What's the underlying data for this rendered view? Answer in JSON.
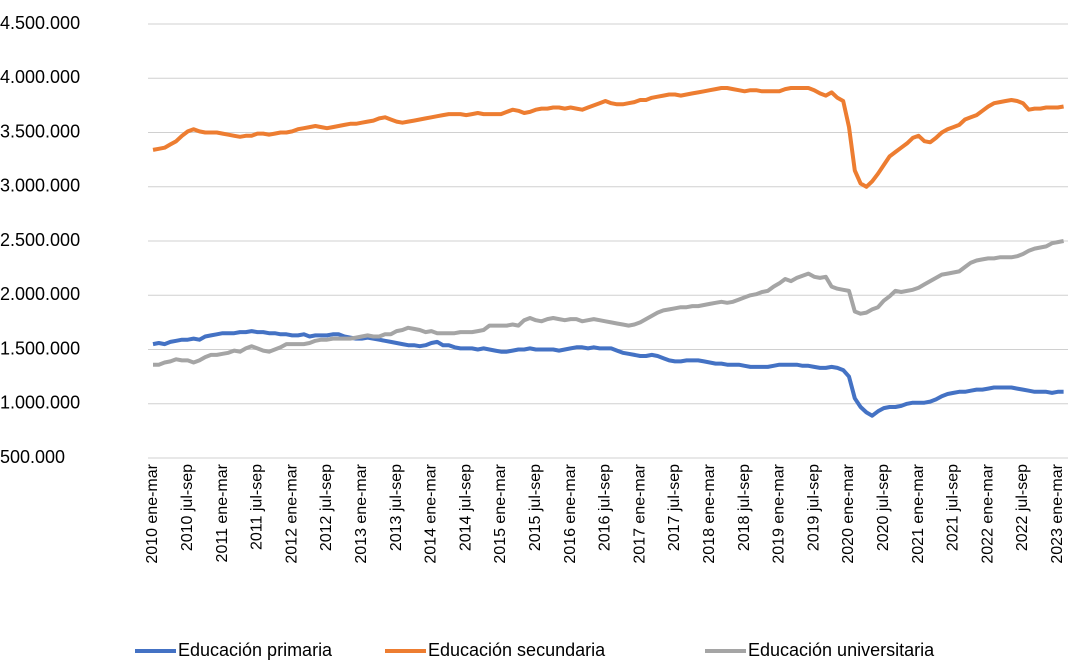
{
  "chart_data": {
    "type": "line",
    "categories": [
      "2010 ene-mar",
      null,
      null,
      null,
      null,
      null,
      "2010 jul-sep",
      null,
      null,
      null,
      null,
      null,
      "2011 ene-mar",
      null,
      null,
      null,
      null,
      null,
      "2011 jul-sep",
      null,
      null,
      null,
      null,
      null,
      "2012 ene-mar",
      null,
      null,
      null,
      null,
      null,
      "2012 jul-sep",
      null,
      null,
      null,
      null,
      null,
      "2013 ene-mar",
      null,
      null,
      null,
      null,
      null,
      "2013 jul-sep",
      null,
      null,
      null,
      null,
      null,
      "2014 ene-mar",
      null,
      null,
      null,
      null,
      null,
      "2014 jul-sep",
      null,
      null,
      null,
      null,
      null,
      "2015 ene-mar",
      null,
      null,
      null,
      null,
      null,
      "2015 jul-sep",
      null,
      null,
      null,
      null,
      null,
      "2016 ene-mar",
      null,
      null,
      null,
      null,
      null,
      "2016 jul-sep",
      null,
      null,
      null,
      null,
      null,
      "2017 ene-mar",
      null,
      null,
      null,
      null,
      null,
      "2017 jul-sep",
      null,
      null,
      null,
      null,
      null,
      "2018 ene-mar",
      null,
      null,
      null,
      null,
      null,
      "2018 jul-sep",
      null,
      null,
      null,
      null,
      null,
      "2019 ene-mar",
      null,
      null,
      null,
      null,
      null,
      "2019 jul-sep",
      null,
      null,
      null,
      null,
      null,
      "2020 ene-mar",
      null,
      null,
      null,
      null,
      null,
      "2020 jul-sep",
      null,
      null,
      null,
      null,
      null,
      "2021 ene-mar",
      null,
      null,
      null,
      null,
      null,
      "2021 jul-sep",
      null,
      null,
      null,
      null,
      null,
      "2022 ene-mar",
      null,
      null,
      null,
      null,
      null,
      "2022 jul-sep",
      null,
      null,
      null,
      null,
      null,
      "2023 ene-mar",
      null
    ],
    "series": [
      {
        "name": "Educación primaria",
        "color": "#4472c4",
        "values": [
          1550000,
          1560000,
          1550000,
          1570000,
          1580000,
          1590000,
          1590000,
          1600000,
          1590000,
          1620000,
          1630000,
          1640000,
          1650000,
          1650000,
          1650000,
          1660000,
          1660000,
          1670000,
          1660000,
          1660000,
          1650000,
          1650000,
          1640000,
          1640000,
          1630000,
          1630000,
          1640000,
          1620000,
          1630000,
          1630000,
          1630000,
          1640000,
          1640000,
          1620000,
          1610000,
          1600000,
          1600000,
          1610000,
          1600000,
          1590000,
          1580000,
          1570000,
          1560000,
          1550000,
          1540000,
          1540000,
          1530000,
          1540000,
          1560000,
          1570000,
          1540000,
          1540000,
          1520000,
          1510000,
          1510000,
          1510000,
          1500000,
          1510000,
          1500000,
          1490000,
          1480000,
          1480000,
          1490000,
          1500000,
          1500000,
          1510000,
          1500000,
          1500000,
          1500000,
          1500000,
          1490000,
          1500000,
          1510000,
          1520000,
          1520000,
          1510000,
          1520000,
          1510000,
          1510000,
          1510000,
          1490000,
          1470000,
          1460000,
          1450000,
          1440000,
          1440000,
          1450000,
          1440000,
          1420000,
          1400000,
          1390000,
          1390000,
          1400000,
          1400000,
          1400000,
          1390000,
          1380000,
          1370000,
          1370000,
          1360000,
          1360000,
          1360000,
          1350000,
          1340000,
          1340000,
          1340000,
          1340000,
          1350000,
          1360000,
          1360000,
          1360000,
          1360000,
          1350000,
          1350000,
          1340000,
          1330000,
          1330000,
          1340000,
          1330000,
          1310000,
          1250000,
          1050000,
          970000,
          920000,
          890000,
          930000,
          960000,
          970000,
          970000,
          980000,
          1000000,
          1010000,
          1010000,
          1010000,
          1020000,
          1040000,
          1070000,
          1090000,
          1100000,
          1110000,
          1110000,
          1120000,
          1130000,
          1130000,
          1140000,
          1150000,
          1150000,
          1150000,
          1150000,
          1140000,
          1130000,
          1120000,
          1110000,
          1110000,
          1110000,
          1100000,
          1110000,
          1110000
        ]
      },
      {
        "name": "Educación secundaria",
        "color": "#ed7d31",
        "values": [
          3340000,
          3350000,
          3360000,
          3390000,
          3420000,
          3470000,
          3510000,
          3530000,
          3510000,
          3500000,
          3500000,
          3500000,
          3490000,
          3480000,
          3470000,
          3460000,
          3470000,
          3470000,
          3490000,
          3490000,
          3480000,
          3490000,
          3500000,
          3500000,
          3510000,
          3530000,
          3540000,
          3550000,
          3560000,
          3550000,
          3540000,
          3550000,
          3560000,
          3570000,
          3580000,
          3580000,
          3590000,
          3600000,
          3610000,
          3630000,
          3640000,
          3620000,
          3600000,
          3590000,
          3600000,
          3610000,
          3620000,
          3630000,
          3640000,
          3650000,
          3660000,
          3670000,
          3670000,
          3670000,
          3660000,
          3670000,
          3680000,
          3670000,
          3670000,
          3670000,
          3670000,
          3690000,
          3710000,
          3700000,
          3680000,
          3690000,
          3710000,
          3720000,
          3720000,
          3730000,
          3730000,
          3720000,
          3730000,
          3720000,
          3710000,
          3730000,
          3750000,
          3770000,
          3790000,
          3770000,
          3760000,
          3760000,
          3770000,
          3780000,
          3800000,
          3800000,
          3820000,
          3830000,
          3840000,
          3850000,
          3850000,
          3840000,
          3850000,
          3860000,
          3870000,
          3880000,
          3890000,
          3900000,
          3910000,
          3910000,
          3900000,
          3890000,
          3880000,
          3890000,
          3890000,
          3880000,
          3880000,
          3880000,
          3880000,
          3900000,
          3910000,
          3910000,
          3910000,
          3910000,
          3890000,
          3860000,
          3840000,
          3870000,
          3820000,
          3790000,
          3550000,
          3150000,
          3030000,
          3000000,
          3050000,
          3120000,
          3200000,
          3280000,
          3320000,
          3360000,
          3400000,
          3450000,
          3470000,
          3420000,
          3410000,
          3450000,
          3500000,
          3530000,
          3550000,
          3570000,
          3620000,
          3640000,
          3660000,
          3700000,
          3740000,
          3770000,
          3780000,
          3790000,
          3800000,
          3790000,
          3770000,
          3710000,
          3720000,
          3720000,
          3730000,
          3730000,
          3730000,
          3740000
        ]
      },
      {
        "name": "Educación universitaria",
        "color": "#a5a5a5",
        "values": [
          1360000,
          1360000,
          1380000,
          1390000,
          1410000,
          1400000,
          1400000,
          1380000,
          1400000,
          1430000,
          1450000,
          1450000,
          1460000,
          1470000,
          1490000,
          1480000,
          1510000,
          1530000,
          1510000,
          1490000,
          1480000,
          1500000,
          1520000,
          1550000,
          1550000,
          1550000,
          1550000,
          1560000,
          1580000,
          1590000,
          1590000,
          1600000,
          1600000,
          1600000,
          1600000,
          1610000,
          1620000,
          1630000,
          1620000,
          1620000,
          1640000,
          1640000,
          1670000,
          1680000,
          1700000,
          1690000,
          1680000,
          1660000,
          1670000,
          1650000,
          1650000,
          1650000,
          1650000,
          1660000,
          1660000,
          1660000,
          1670000,
          1680000,
          1720000,
          1720000,
          1720000,
          1720000,
          1730000,
          1720000,
          1770000,
          1790000,
          1770000,
          1760000,
          1780000,
          1790000,
          1780000,
          1770000,
          1780000,
          1780000,
          1760000,
          1770000,
          1780000,
          1770000,
          1760000,
          1750000,
          1740000,
          1730000,
          1720000,
          1730000,
          1750000,
          1780000,
          1810000,
          1840000,
          1860000,
          1870000,
          1880000,
          1890000,
          1890000,
          1900000,
          1900000,
          1910000,
          1920000,
          1930000,
          1940000,
          1930000,
          1940000,
          1960000,
          1980000,
          2000000,
          2010000,
          2030000,
          2040000,
          2080000,
          2110000,
          2150000,
          2130000,
          2160000,
          2180000,
          2200000,
          2170000,
          2160000,
          2170000,
          2080000,
          2060000,
          2050000,
          2040000,
          1850000,
          1830000,
          1840000,
          1870000,
          1890000,
          1950000,
          1990000,
          2040000,
          2030000,
          2040000,
          2050000,
          2070000,
          2100000,
          2130000,
          2160000,
          2190000,
          2200000,
          2210000,
          2220000,
          2260000,
          2300000,
          2320000,
          2330000,
          2340000,
          2340000,
          2350000,
          2350000,
          2350000,
          2360000,
          2380000,
          2410000,
          2430000,
          2440000,
          2450000,
          2480000,
          2490000,
          2500000
        ]
      }
    ],
    "ylim": [
      500000,
      4500000
    ],
    "yticks": [
      {
        "value": 500000,
        "label": "500.000"
      },
      {
        "value": 1000000,
        "label": "1.000.000"
      },
      {
        "value": 1500000,
        "label": "1.500.000"
      },
      {
        "value": 2000000,
        "label": "2.000.000"
      },
      {
        "value": 2500000,
        "label": "2.500.000"
      },
      {
        "value": 3000000,
        "label": "3.000.000"
      },
      {
        "value": 3500000,
        "label": "3.500.000"
      },
      {
        "value": 4000000,
        "label": "4.000.000"
      },
      {
        "value": 4500000,
        "label": "4.500.000"
      }
    ],
    "grid": true,
    "legend": "bottom"
  }
}
